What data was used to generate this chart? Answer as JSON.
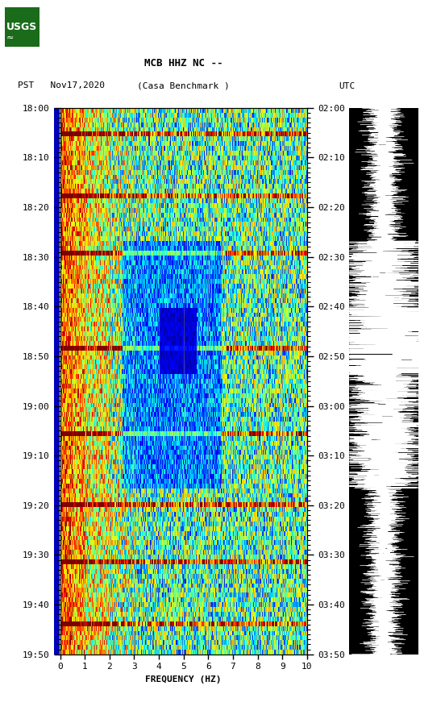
{
  "title_line1": "MCB HHZ NC --",
  "title_line2_left": "PST   Nov17,2020",
  "title_line2_center": "(Casa Benchmark )",
  "title_line2_right": "UTC",
  "xlabel": "FREQUENCY (HZ)",
  "xmin": 0,
  "xmax": 10,
  "xticks": [
    0,
    1,
    2,
    3,
    4,
    5,
    6,
    7,
    8,
    9,
    10
  ],
  "pst_labels": [
    "18:00",
    "18:10",
    "18:20",
    "18:30",
    "18:40",
    "18:50",
    "19:00",
    "19:10",
    "19:20",
    "19:30",
    "19:40",
    "19:50"
  ],
  "utc_labels": [
    "02:00",
    "02:10",
    "02:20",
    "02:30",
    "02:40",
    "02:50",
    "03:00",
    "03:10",
    "03:20",
    "03:30",
    "03:40",
    "03:50"
  ],
  "bg_color": "#ffffff",
  "blue_bar_color": "#0000bb",
  "grid_color": "#888888",
  "logo_color": "#1a6b1a",
  "fig_width": 5.52,
  "fig_height": 8.92,
  "colormap": "jet",
  "seed": 42,
  "n_time": 115,
  "n_freq": 300
}
